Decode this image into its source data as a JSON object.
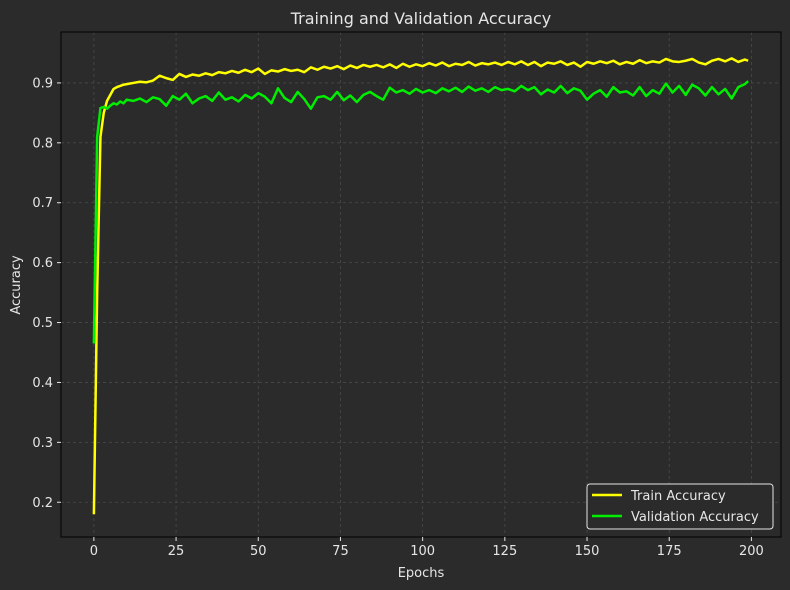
{
  "chart_data": {
    "type": "line",
    "title": "Training and Validation Accuracy",
    "xlabel": "Epochs",
    "ylabel": "Accuracy",
    "xlim": [
      -10,
      209
    ],
    "ylim": [
      0.142,
      0.985
    ],
    "xticks": [
      0,
      25,
      50,
      75,
      100,
      125,
      150,
      175,
      200
    ],
    "xtick_labels": [
      "0",
      "25",
      "50",
      "75",
      "100",
      "125",
      "150",
      "175",
      "200"
    ],
    "yticks": [
      0.2,
      0.3,
      0.4,
      0.5,
      0.6,
      0.7,
      0.8,
      0.9
    ],
    "ytick_labels": [
      "0.2",
      "0.3",
      "0.4",
      "0.5",
      "0.6",
      "0.7",
      "0.8",
      "0.9"
    ],
    "grid": true,
    "legend_position": "bottom-right",
    "colors": {
      "background": "#2b2b2b",
      "frame": "#000000",
      "grid": "#4a4a4a",
      "text": "#e6e6e6"
    },
    "series": [
      {
        "name": "Train Accuracy",
        "color": "#ffff00",
        "x": [
          0,
          1,
          2,
          3,
          4,
          5,
          6,
          7,
          8,
          9,
          10,
          12,
          14,
          16,
          18,
          20,
          22,
          24,
          26,
          28,
          30,
          32,
          34,
          36,
          38,
          40,
          42,
          44,
          46,
          48,
          50,
          52,
          54,
          56,
          58,
          60,
          62,
          64,
          66,
          68,
          70,
          72,
          74,
          76,
          78,
          80,
          82,
          84,
          86,
          88,
          90,
          92,
          94,
          96,
          98,
          100,
          102,
          104,
          106,
          108,
          110,
          112,
          114,
          116,
          118,
          120,
          122,
          124,
          126,
          128,
          130,
          132,
          134,
          136,
          138,
          140,
          142,
          144,
          146,
          148,
          150,
          152,
          154,
          156,
          158,
          160,
          162,
          164,
          166,
          168,
          170,
          172,
          174,
          176,
          178,
          180,
          182,
          184,
          186,
          188,
          190,
          192,
          194,
          196,
          198,
          199
        ],
        "values": [
          0.18,
          0.55,
          0.81,
          0.85,
          0.87,
          0.88,
          0.89,
          0.893,
          0.895,
          0.897,
          0.898,
          0.9,
          0.902,
          0.901,
          0.904,
          0.912,
          0.908,
          0.905,
          0.915,
          0.91,
          0.914,
          0.912,
          0.916,
          0.913,
          0.918,
          0.916,
          0.92,
          0.917,
          0.922,
          0.918,
          0.924,
          0.915,
          0.921,
          0.919,
          0.923,
          0.92,
          0.922,
          0.918,
          0.926,
          0.922,
          0.927,
          0.924,
          0.928,
          0.923,
          0.929,
          0.925,
          0.93,
          0.927,
          0.93,
          0.926,
          0.931,
          0.925,
          0.932,
          0.927,
          0.931,
          0.928,
          0.933,
          0.929,
          0.934,
          0.928,
          0.932,
          0.93,
          0.935,
          0.929,
          0.933,
          0.931,
          0.934,
          0.93,
          0.935,
          0.931,
          0.936,
          0.93,
          0.935,
          0.928,
          0.934,
          0.932,
          0.936,
          0.93,
          0.934,
          0.927,
          0.935,
          0.932,
          0.936,
          0.933,
          0.937,
          0.931,
          0.935,
          0.932,
          0.938,
          0.933,
          0.936,
          0.934,
          0.94,
          0.936,
          0.935,
          0.937,
          0.94,
          0.934,
          0.931,
          0.937,
          0.94,
          0.936,
          0.941,
          0.935,
          0.939,
          0.937
        ]
      },
      {
        "name": "Validation Accuracy",
        "color": "#00ee00",
        "x": [
          0,
          1,
          2,
          3,
          4,
          5,
          6,
          7,
          8,
          9,
          10,
          12,
          14,
          16,
          18,
          20,
          22,
          24,
          26,
          28,
          30,
          32,
          34,
          36,
          38,
          40,
          42,
          44,
          46,
          48,
          50,
          52,
          54,
          56,
          58,
          60,
          62,
          64,
          66,
          68,
          70,
          72,
          74,
          76,
          78,
          80,
          82,
          84,
          86,
          88,
          90,
          92,
          94,
          96,
          98,
          100,
          102,
          104,
          106,
          108,
          110,
          112,
          114,
          116,
          118,
          120,
          122,
          124,
          126,
          128,
          130,
          132,
          134,
          136,
          138,
          140,
          142,
          144,
          146,
          148,
          150,
          152,
          154,
          156,
          158,
          160,
          162,
          164,
          166,
          168,
          170,
          172,
          174,
          176,
          178,
          180,
          182,
          184,
          186,
          188,
          190,
          192,
          194,
          196,
          198,
          199
        ],
        "values": [
          0.465,
          0.81,
          0.858,
          0.86,
          0.857,
          0.862,
          0.866,
          0.864,
          0.869,
          0.866,
          0.872,
          0.87,
          0.874,
          0.868,
          0.876,
          0.873,
          0.862,
          0.878,
          0.872,
          0.882,
          0.866,
          0.874,
          0.878,
          0.87,
          0.884,
          0.872,
          0.876,
          0.869,
          0.88,
          0.874,
          0.883,
          0.877,
          0.866,
          0.891,
          0.875,
          0.868,
          0.885,
          0.873,
          0.857,
          0.876,
          0.878,
          0.872,
          0.885,
          0.871,
          0.879,
          0.868,
          0.88,
          0.885,
          0.878,
          0.872,
          0.892,
          0.884,
          0.888,
          0.882,
          0.89,
          0.884,
          0.888,
          0.883,
          0.891,
          0.886,
          0.892,
          0.885,
          0.894,
          0.887,
          0.891,
          0.885,
          0.893,
          0.888,
          0.89,
          0.886,
          0.895,
          0.888,
          0.893,
          0.881,
          0.889,
          0.884,
          0.895,
          0.883,
          0.891,
          0.887,
          0.872,
          0.882,
          0.888,
          0.877,
          0.893,
          0.884,
          0.886,
          0.879,
          0.893,
          0.878,
          0.888,
          0.882,
          0.899,
          0.884,
          0.895,
          0.88,
          0.897,
          0.891,
          0.879,
          0.893,
          0.881,
          0.89,
          0.874,
          0.893,
          0.898,
          0.903
        ]
      }
    ]
  }
}
